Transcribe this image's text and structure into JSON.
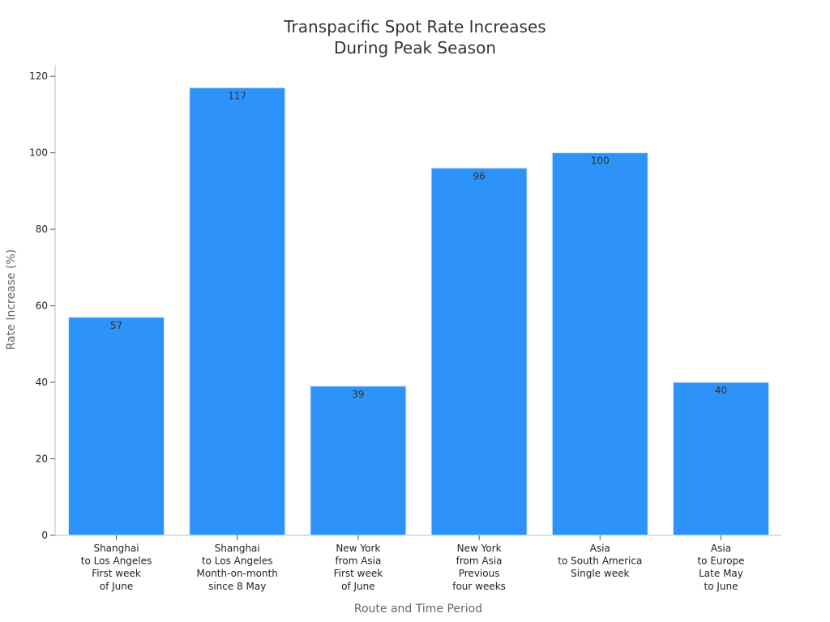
{
  "colors": {
    "bar": "#2e93f8",
    "axis": "#bbbbbb",
    "tick": "#555555"
  },
  "chart_data": {
    "type": "bar",
    "title_lines": [
      "Transpacific Spot Rate Increases",
      "During Peak Season"
    ],
    "xlabel": "Route and Time Period",
    "ylabel": "Rate Increase (%)",
    "ylim": [
      0,
      123
    ],
    "yticks": [
      0,
      20,
      40,
      60,
      80,
      100,
      120
    ],
    "grid": false,
    "categories": [
      [
        "Shanghai",
        "to Los Angeles",
        "First week",
        "of June"
      ],
      [
        "Shanghai",
        "to Los Angeles",
        "Month-on-month",
        "since 8 May"
      ],
      [
        "New York",
        "from Asia",
        "First week",
        "of June"
      ],
      [
        "New York",
        "from Asia",
        "Previous",
        "four weeks"
      ],
      [
        "Asia",
        "to South America",
        "Single week"
      ],
      [
        "Asia",
        "to Europe",
        "Late May",
        "to June"
      ]
    ],
    "values": [
      57,
      117,
      39,
      96,
      100,
      40
    ]
  }
}
